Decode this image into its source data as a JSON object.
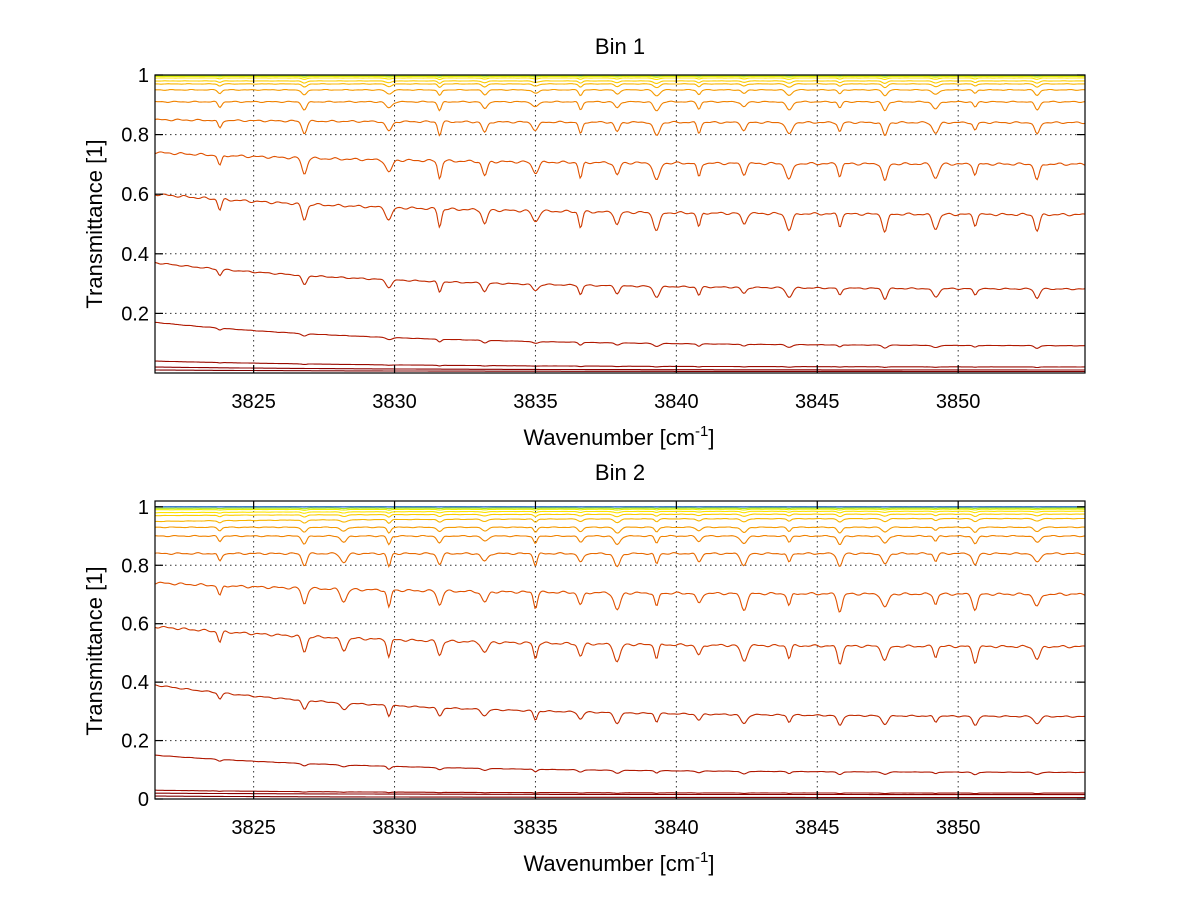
{
  "chart_data": [
    {
      "type": "line",
      "title": "Bin 1",
      "xlabel": "Wavenumber [cm",
      "xlabel_sup": "-1",
      "xlabel_end": "]",
      "ylabel": "Transmittance [1]",
      "xlim": [
        3821.5,
        3854.5
      ],
      "ylim": [
        0,
        1
      ],
      "xticks": [
        3825,
        3830,
        3835,
        3840,
        3845,
        3850
      ],
      "xtick_labels": [
        "3825",
        "3830",
        "3835",
        "3840",
        "3845",
        "3850"
      ],
      "yticks": [
        0.2,
        0.4,
        0.6,
        0.8,
        1
      ],
      "ytick_labels": [
        "0.2",
        "0.4",
        "0.6",
        "0.8",
        "1"
      ],
      "grid": true,
      "absorption_lines": [
        3823.8,
        3826.8,
        3829.8,
        3831.6,
        3833.2,
        3835.0,
        3836.6,
        3837.9,
        3839.3,
        3840.8,
        3842.4,
        3844.0,
        3845.8,
        3847.4,
        3849.2,
        3850.6,
        3852.8
      ],
      "series": [
        {
          "start": 0.01,
          "end": 0.005,
          "depth": 0.0,
          "color": "#7f0000"
        },
        {
          "start": 0.02,
          "end": 0.01,
          "depth": 0.0,
          "color": "#8b0000"
        },
        {
          "start": 0.04,
          "end": 0.02,
          "depth": 0.002,
          "color": "#9a0a00"
        },
        {
          "start": 0.17,
          "end": 0.09,
          "depth": 0.01,
          "color": "#b01800"
        },
        {
          "start": 0.37,
          "end": 0.28,
          "depth": 0.035,
          "color": "#c02a00"
        },
        {
          "start": 0.6,
          "end": 0.53,
          "depth": 0.06,
          "color": "#d03c00"
        },
        {
          "start": 0.74,
          "end": 0.7,
          "depth": 0.06,
          "color": "#e05200"
        },
        {
          "start": 0.85,
          "end": 0.84,
          "depth": 0.045,
          "color": "#e86a00"
        },
        {
          "start": 0.91,
          "end": 0.91,
          "depth": 0.03,
          "color": "#f08200"
        },
        {
          "start": 0.95,
          "end": 0.95,
          "depth": 0.02,
          "color": "#f59a00"
        },
        {
          "start": 0.97,
          "end": 0.97,
          "depth": 0.012,
          "color": "#f8b400"
        },
        {
          "start": 0.98,
          "end": 0.98,
          "depth": 0.008,
          "color": "#fbcc00"
        },
        {
          "start": 0.99,
          "end": 0.99,
          "depth": 0.005,
          "color": "#fde400"
        },
        {
          "start": 0.995,
          "end": 0.995,
          "depth": 0.003,
          "color": "#e6f000"
        },
        {
          "start": 0.998,
          "end": 0.998,
          "depth": 0.002,
          "color": "#a6e030"
        },
        {
          "start": 1.0,
          "end": 1.0,
          "depth": 0.001,
          "color": "#40c8a0"
        },
        {
          "start": 1.0,
          "end": 1.0,
          "depth": 0.0,
          "color": "#2060d0"
        }
      ]
    },
    {
      "type": "line",
      "title": "Bin 2",
      "xlabel": "Wavenumber [cm",
      "xlabel_sup": "-1",
      "xlabel_end": "]",
      "ylabel": "Transmittance [1]",
      "xlim": [
        3821.5,
        3854.5
      ],
      "ylim": [
        0,
        1.02
      ],
      "xticks": [
        3825,
        3830,
        3835,
        3840,
        3845,
        3850
      ],
      "xtick_labels": [
        "3825",
        "3830",
        "3835",
        "3840",
        "3845",
        "3850"
      ],
      "yticks": [
        0,
        0.2,
        0.4,
        0.6,
        0.8,
        1
      ],
      "ytick_labels": [
        "0",
        "0.2",
        "0.4",
        "0.6",
        "0.8",
        "1"
      ],
      "grid": true,
      "absorption_lines": [
        3823.8,
        3826.8,
        3828.2,
        3829.8,
        3831.6,
        3833.2,
        3835.0,
        3836.6,
        3837.9,
        3839.3,
        3840.8,
        3842.4,
        3844.0,
        3845.8,
        3847.4,
        3849.2,
        3850.6,
        3852.8
      ],
      "series": [
        {
          "start": 0.01,
          "end": 0.005,
          "depth": 0.0,
          "color": "#7f0000"
        },
        {
          "start": 0.02,
          "end": 0.015,
          "depth": 0.0,
          "color": "#8b0000"
        },
        {
          "start": 0.03,
          "end": 0.02,
          "depth": 0.002,
          "color": "#9a0a00"
        },
        {
          "start": 0.15,
          "end": 0.09,
          "depth": 0.01,
          "color": "#b01800"
        },
        {
          "start": 0.39,
          "end": 0.28,
          "depth": 0.035,
          "color": "#c02a00"
        },
        {
          "start": 0.59,
          "end": 0.52,
          "depth": 0.06,
          "color": "#d03c00"
        },
        {
          "start": 0.74,
          "end": 0.7,
          "depth": 0.06,
          "color": "#e05200"
        },
        {
          "start": 0.84,
          "end": 0.84,
          "depth": 0.045,
          "color": "#e86a00"
        },
        {
          "start": 0.9,
          "end": 0.9,
          "depth": 0.03,
          "color": "#f08200"
        },
        {
          "start": 0.93,
          "end": 0.93,
          "depth": 0.02,
          "color": "#f59a00"
        },
        {
          "start": 0.95,
          "end": 0.96,
          "depth": 0.012,
          "color": "#f8b400"
        },
        {
          "start": 0.97,
          "end": 0.975,
          "depth": 0.008,
          "color": "#fbcc00"
        },
        {
          "start": 0.98,
          "end": 0.985,
          "depth": 0.005,
          "color": "#fde400"
        },
        {
          "start": 0.99,
          "end": 0.992,
          "depth": 0.003,
          "color": "#e6f000"
        },
        {
          "start": 0.995,
          "end": 0.996,
          "depth": 0.002,
          "color": "#a6e030"
        },
        {
          "start": 1.0,
          "end": 1.0,
          "depth": 0.001,
          "color": "#40c8a0"
        },
        {
          "start": 1.0,
          "end": 1.0,
          "depth": 0.0,
          "color": "#2060d0"
        }
      ]
    }
  ]
}
